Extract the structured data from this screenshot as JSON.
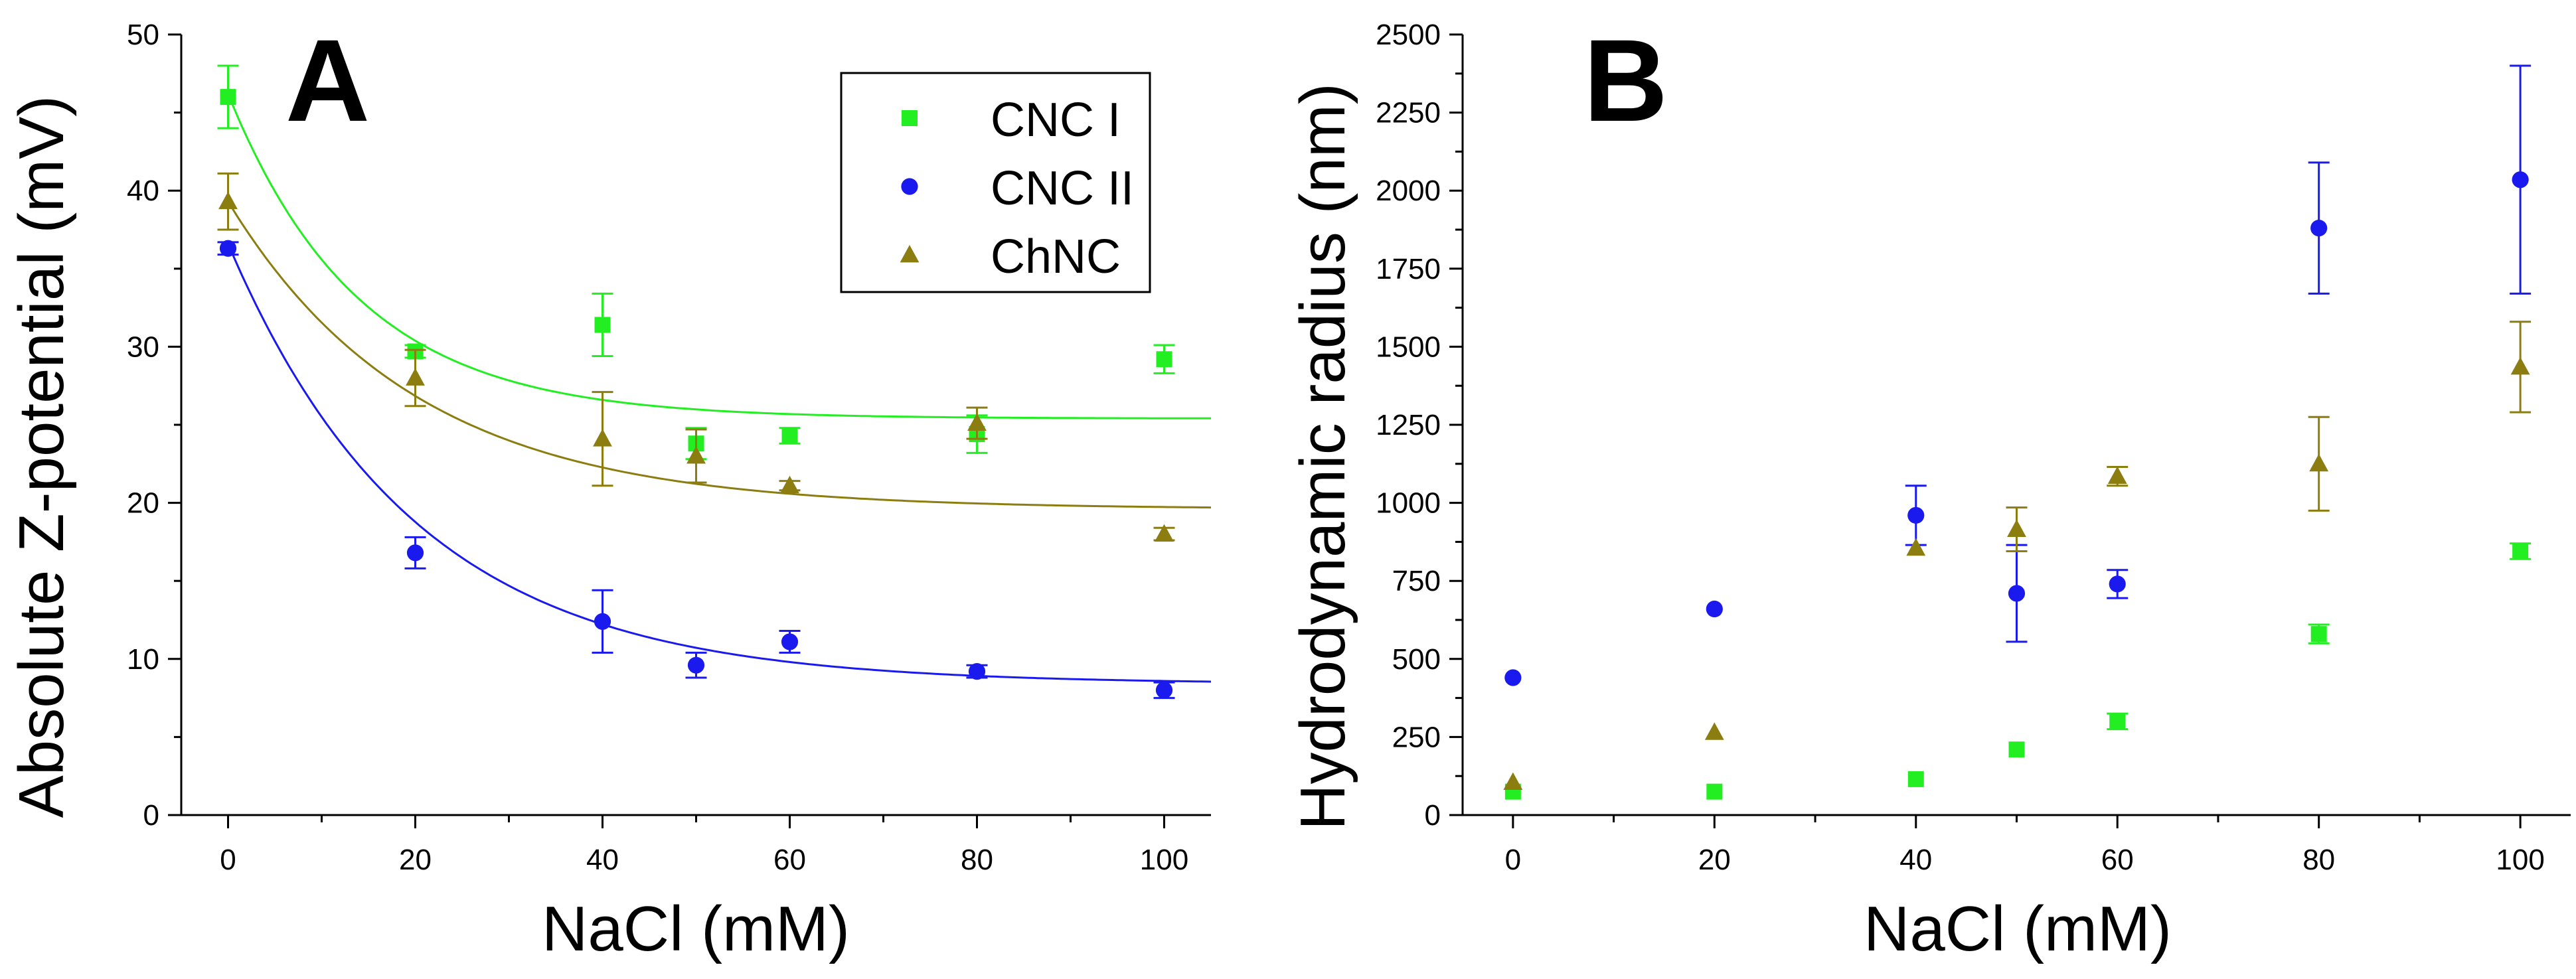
{
  "colors": {
    "cnc1": "#22ee22",
    "cnc2": "#1a1aee",
    "chnc": "#8b7d10"
  },
  "chart_data": [
    {
      "panel": "A",
      "type": "scatter",
      "xlabel": "NaCl (mM)",
      "ylabel": "Absolute Z-potential (mV)",
      "xlim": [
        -5,
        105
      ],
      "ylim": [
        0,
        50
      ],
      "xticks": [
        0,
        20,
        40,
        60,
        80,
        100
      ],
      "yticks": [
        0,
        10,
        20,
        30,
        40,
        50
      ],
      "legend_position": "top-right",
      "series": [
        {
          "name": "CNC I",
          "marker": "square",
          "color_key": "cnc1",
          "x": [
            0,
            20,
            40,
            50,
            60,
            80,
            100
          ],
          "y": [
            46,
            29.7,
            31.4,
            23.8,
            24.3,
            24.4,
            29.2
          ],
          "err": [
            2.0,
            0.4,
            2.0,
            1.0,
            0.5,
            1.2,
            0.9
          ],
          "fit": {
            "y0": 25.4,
            "a": 20.8,
            "t": 14
          }
        },
        {
          "name": "CNC II",
          "marker": "circle",
          "color_key": "cnc2",
          "x": [
            0,
            20,
            40,
            50,
            60,
            80,
            100
          ],
          "y": [
            36.3,
            16.8,
            12.4,
            9.6,
            11.1,
            9.2,
            8.0
          ],
          "err": [
            0.4,
            1.0,
            2.0,
            0.8,
            0.7,
            0.4,
            0.5
          ],
          "fit": {
            "y0": 8.4,
            "a": 28.2,
            "t": 20
          }
        },
        {
          "name": "ChNC",
          "marker": "triangle",
          "color_key": "chnc",
          "x": [
            0,
            20,
            40,
            50,
            60,
            80,
            100
          ],
          "y": [
            39.3,
            28.0,
            24.1,
            23.0,
            21.1,
            25.1,
            18.0
          ],
          "err": [
            1.8,
            1.8,
            3.0,
            1.7,
            0.3,
            1.0,
            0.4
          ],
          "fit": {
            "y0": 19.6,
            "a": 19.7,
            "t": 20
          }
        }
      ]
    },
    {
      "panel": "B",
      "type": "scatter",
      "xlabel": "NaCl (mM)",
      "ylabel": "Hydrodynamic radius (nm)",
      "xlim": [
        -5,
        105
      ],
      "ylim": [
        0,
        2500
      ],
      "xticks": [
        0,
        20,
        40,
        60,
        80,
        100
      ],
      "yticks": [
        0,
        250,
        500,
        750,
        1000,
        1250,
        1500,
        1750,
        2000,
        2250,
        2500
      ],
      "series": [
        {
          "name": "CNC I",
          "marker": "square",
          "color_key": "cnc1",
          "x": [
            0,
            20,
            40,
            50,
            60,
            80,
            100
          ],
          "y": [
            75,
            75,
            115,
            210,
            300,
            580,
            845
          ],
          "err": [
            0,
            0,
            0,
            0,
            25,
            30,
            25
          ]
        },
        {
          "name": "CNC II",
          "marker": "circle",
          "color_key": "cnc2",
          "x": [
            0,
            20,
            40,
            50,
            60,
            80,
            100
          ],
          "y": [
            440,
            660,
            960,
            710,
            740,
            1880,
            2035
          ],
          "err": [
            0,
            0,
            95,
            155,
            45,
            210,
            365
          ]
        },
        {
          "name": "ChNC",
          "marker": "triangle",
          "color_key": "chnc",
          "x": [
            0,
            20,
            40,
            50,
            60,
            80,
            100
          ],
          "y": [
            105,
            265,
            855,
            915,
            1085,
            1125,
            1435
          ],
          "err": [
            0,
            0,
            0,
            70,
            30,
            150,
            145
          ]
        }
      ]
    }
  ]
}
